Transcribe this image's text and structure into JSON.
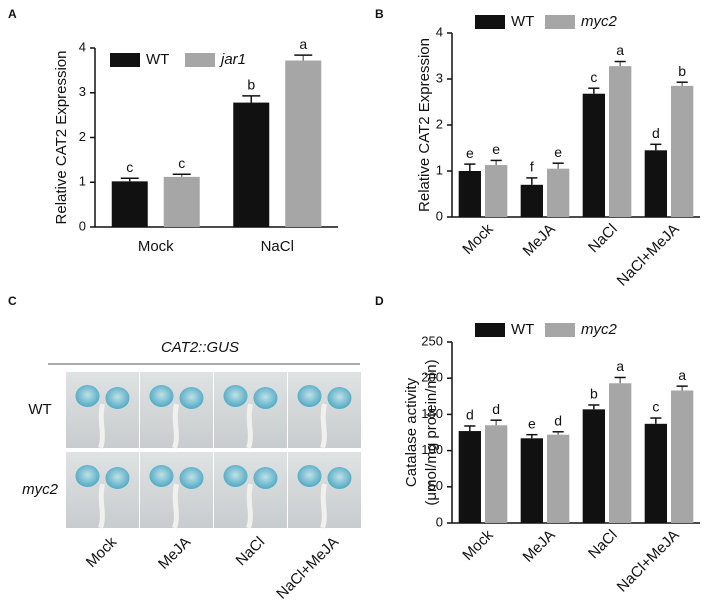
{
  "chart_data": [
    {
      "type": "bar",
      "panel": "A",
      "y_label": "Relative CAT2 Expression",
      "categories": [
        "Mock",
        "NaCl"
      ],
      "series": [
        {
          "name": "WT",
          "color": "#111111",
          "values": [
            1.02,
            2.78
          ],
          "errors": [
            0.07,
            0.15
          ],
          "letters": [
            "c",
            "b"
          ]
        },
        {
          "name": "jar1",
          "color": "#a6a6a6",
          "values": [
            1.12,
            3.72
          ],
          "errors": [
            0.06,
            0.12
          ],
          "letters": [
            "c",
            "a"
          ]
        }
      ],
      "ylim": [
        0,
        4
      ],
      "yticks": [
        0,
        1,
        2,
        3,
        4
      ]
    },
    {
      "type": "bar",
      "panel": "B",
      "y_label": "Relative CAT2 Expression",
      "categories": [
        "Mock",
        "MeJA",
        "NaCl",
        "NaCl+MeJA"
      ],
      "series": [
        {
          "name": "WT",
          "color": "#111111",
          "values": [
            1.0,
            0.7,
            2.68,
            1.45
          ],
          "errors": [
            0.15,
            0.15,
            0.12,
            0.13
          ],
          "letters": [
            "e",
            "f",
            "c",
            "d"
          ]
        },
        {
          "name": "myc2",
          "color": "#a6a6a6",
          "values": [
            1.13,
            1.05,
            3.28,
            2.85
          ],
          "errors": [
            0.1,
            0.12,
            0.1,
            0.08
          ],
          "letters": [
            "e",
            "e",
            "a",
            "b"
          ]
        }
      ],
      "ylim": [
        0,
        4
      ],
      "yticks": [
        0,
        1,
        2,
        3,
        4
      ]
    },
    {
      "type": "bar",
      "panel": "D",
      "y_label": [
        "Catalase activity",
        "(μmol/mg protein/min)"
      ],
      "categories": [
        "Mock",
        "MeJA",
        "NaCl",
        "NaCl+MeJA"
      ],
      "series": [
        {
          "name": "WT",
          "color": "#111111",
          "values": [
            127,
            117,
            157,
            137
          ],
          "errors": [
            7,
            5,
            6,
            8
          ],
          "letters": [
            "d",
            "e",
            "b",
            "c"
          ]
        },
        {
          "name": "myc2",
          "color": "#a6a6a6",
          "values": [
            135,
            122,
            193,
            183
          ],
          "errors": [
            7,
            4,
            8,
            6
          ],
          "letters": [
            "d",
            "d",
            "a",
            "a"
          ]
        }
      ],
      "ylim": [
        0,
        250
      ],
      "yticks": [
        0,
        50,
        100,
        150,
        200,
        250
      ]
    }
  ],
  "panel_c": {
    "panel": "C",
    "title": "CAT2::GUS",
    "rows": [
      "WT",
      "myc2"
    ],
    "columns": [
      "Mock",
      "MeJA",
      "NaCl",
      "NaCl+MeJA"
    ]
  }
}
